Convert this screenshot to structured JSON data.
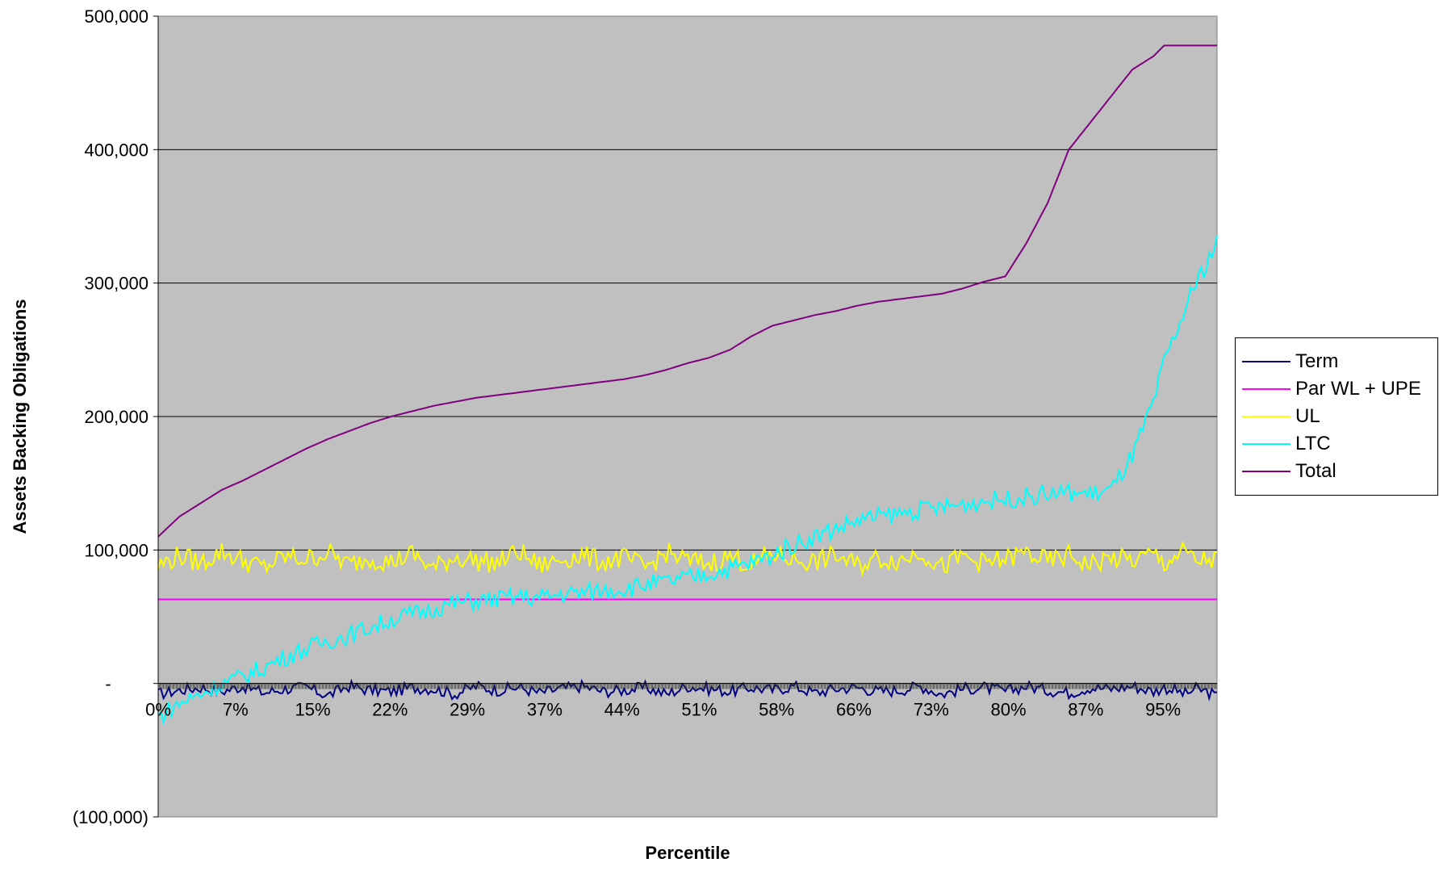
{
  "chart_data": {
    "type": "line",
    "title": "",
    "xlabel": "Percentile",
    "ylabel": "Assets Backing Obligations",
    "ylim": [
      -100000,
      500000
    ],
    "y_ticks": [
      "500,000",
      "400,000",
      "300,000",
      "200,000",
      "100,000",
      "-",
      "(100,000)"
    ],
    "y_tick_values": [
      500000,
      400000,
      300000,
      200000,
      100000,
      0,
      -100000
    ],
    "x_ticks": [
      "0%",
      "7%",
      "15%",
      "22%",
      "29%",
      "37%",
      "44%",
      "51%",
      "58%",
      "66%",
      "73%",
      "80%",
      "87%",
      "95%"
    ],
    "x_tick_values": [
      0,
      7.3,
      14.6,
      21.9,
      29.2,
      36.5,
      43.8,
      51.1,
      58.4,
      65.7,
      73.0,
      80.3,
      87.6,
      94.9
    ],
    "grid": "horizontal",
    "plot_background": "#C0C0C0",
    "legend_position": "right",
    "x": [
      0,
      2,
      4,
      6,
      8,
      10,
      12,
      14,
      16,
      18,
      20,
      22,
      24,
      26,
      28,
      30,
      32,
      34,
      36,
      38,
      40,
      42,
      44,
      46,
      48,
      50,
      52,
      54,
      56,
      58,
      60,
      62,
      64,
      66,
      68,
      70,
      72,
      74,
      76,
      78,
      80,
      82,
      84,
      86,
      88,
      90,
      92,
      94,
      95,
      96,
      97,
      98,
      99,
      100
    ],
    "series": [
      {
        "name": "Term",
        "color": "#000080",
        "values": [
          -8000,
          -5000,
          -3000,
          -6000,
          -2000,
          -7000,
          -4000,
          -3000,
          -9000,
          -2000,
          -5000,
          -6000,
          -3000,
          -4000,
          -8000,
          -2000,
          -5000,
          -3000,
          -7000,
          -4000,
          -2000,
          -6000,
          -5000,
          -3000,
          -8000,
          -2000,
          -4000,
          -6000,
          -3000,
          -5000,
          -2000,
          -7000,
          -4000,
          -3000,
          -6000,
          -5000,
          -2000,
          -8000,
          -4000,
          -3000,
          -6000,
          -2000,
          -5000,
          -7000,
          -3000,
          -4000,
          -2000,
          -6000,
          -3000,
          -5000,
          -8000,
          -4000,
          -6000,
          -10000
        ]
      },
      {
        "name": "Par WL + UPE",
        "color": "#FF00FF",
        "values": [
          63000,
          63000,
          63000,
          63000,
          63000,
          63000,
          63000,
          63000,
          63000,
          63000,
          63000,
          63000,
          63000,
          63000,
          63000,
          63000,
          63000,
          63000,
          63000,
          63000,
          63000,
          63000,
          63000,
          63000,
          63000,
          63000,
          63000,
          63000,
          63000,
          63000,
          63000,
          63000,
          63000,
          63000,
          63000,
          63000,
          63000,
          63000,
          63000,
          63000,
          63000,
          63000,
          63000,
          63000,
          63000,
          63000,
          63000,
          63000,
          63000,
          63000,
          63000,
          63000,
          63000,
          63000
        ]
      },
      {
        "name": "UL",
        "color": "#FFFF00",
        "values": [
          88000,
          96000,
          90000,
          99000,
          92000,
          87000,
          95000,
          93000,
          98000,
          89000,
          94000,
          91000,
          97000,
          86000,
          95000,
          92000,
          90000,
          99000,
          88000,
          93000,
          96000,
          91000,
          94000,
          87000,
          98000,
          92000,
          90000,
          95000,
          89000,
          97000,
          93000,
          91000,
          96000,
          88000,
          94000,
          92000,
          99000,
          87000,
          95000,
          90000,
          93000,
          98000,
          91000,
          96000,
          89000,
          94000,
          92000,
          97000,
          90000,
          95000,
          99000,
          91000,
          93000,
          92000
        ]
      },
      {
        "name": "LTC",
        "color": "#00FFFF",
        "values": [
          -25000,
          -15000,
          -8000,
          0,
          5000,
          12000,
          20000,
          26000,
          32000,
          36000,
          42000,
          48000,
          52000,
          56000,
          60000,
          62000,
          63000,
          65000,
          64000,
          67000,
          68000,
          70000,
          71000,
          74000,
          76000,
          79000,
          82000,
          86000,
          90000,
          96000,
          104000,
          110000,
          116000,
          122000,
          125000,
          127000,
          130000,
          132000,
          134000,
          137000,
          138000,
          140000,
          142000,
          143000,
          142000,
          145000,
          170000,
          210000,
          240000,
          260000,
          280000,
          300000,
          315000,
          330000
        ]
      },
      {
        "name": "Total",
        "color": "#800080",
        "values": [
          110000,
          125000,
          135000,
          145000,
          152000,
          160000,
          168000,
          176000,
          183000,
          189000,
          195000,
          200000,
          204000,
          208000,
          211000,
          214000,
          216000,
          218000,
          220000,
          222000,
          224000,
          226000,
          228000,
          231000,
          235000,
          240000,
          244000,
          250000,
          260000,
          268000,
          272000,
          276000,
          279000,
          283000,
          286000,
          288000,
          290000,
          292000,
          296000,
          301000,
          305000,
          330000,
          360000,
          400000,
          420000,
          440000,
          460000,
          470000,
          478000,
          478000,
          478000,
          478000,
          478000,
          478000
        ]
      }
    ]
  }
}
